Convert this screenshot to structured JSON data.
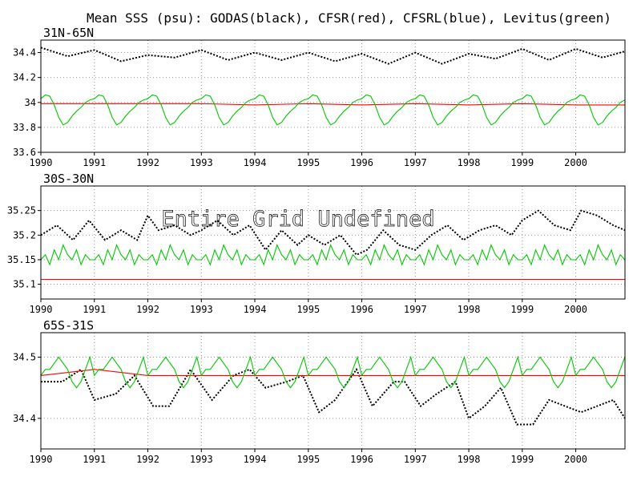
{
  "figure_title": "Mean SSS (psu): GODAS(black), CFSR(red), CFSRL(blue), Levitus(green)",
  "colors": {
    "godas": "#000000",
    "cfsr": "#ff0000",
    "cfsrl": "#0000ff",
    "levitus": "#00c800",
    "grid": "#9a9a9a",
    "frame": "#000000"
  },
  "chart_data": [
    {
      "type": "line",
      "title": "31N-65N",
      "xlabel": "",
      "ylabel": "",
      "x_ticks": [
        "1990",
        "1991",
        "1992",
        "1993",
        "1994",
        "1995",
        "1996",
        "1997",
        "1998",
        "1999",
        "2000"
      ],
      "xlim": [
        1990,
        2000.92
      ],
      "y_ticks": [
        "33.6",
        "33.8",
        "34",
        "34.2",
        "34.4"
      ],
      "ylim": [
        33.6,
        34.5
      ],
      "grid": true,
      "annotation": "",
      "series": [
        {
          "name": "GODAS",
          "color": "black",
          "style": "dotted",
          "x": [
            1990.0,
            1990.5,
            1991.0,
            1991.5,
            1992.0,
            1992.5,
            1993.0,
            1993.5,
            1994.0,
            1994.5,
            1995.0,
            1995.5,
            1996.0,
            1996.5,
            1997.0,
            1997.5,
            1998.0,
            1998.5,
            1999.0,
            1999.5,
            2000.0,
            2000.5,
            2000.92
          ],
          "values": [
            34.44,
            34.37,
            34.42,
            34.33,
            34.38,
            34.36,
            34.42,
            34.34,
            34.4,
            34.34,
            34.4,
            34.33,
            34.39,
            34.31,
            34.4,
            34.31,
            34.39,
            34.35,
            34.43,
            34.34,
            34.43,
            34.36,
            34.41
          ]
        },
        {
          "name": "CFSR",
          "color": "red",
          "style": "solid",
          "x": [
            1990.0,
            1991.0,
            1992.0,
            1993.0,
            1994.0,
            1995.0,
            1996.0,
            1997.0,
            1998.0,
            1999.0,
            2000.0,
            2000.92
          ],
          "values": [
            33.99,
            33.99,
            33.99,
            33.99,
            33.98,
            33.99,
            33.98,
            33.99,
            33.98,
            33.99,
            33.98,
            33.98
          ]
        },
        {
          "name": "Levitus",
          "color": "green",
          "style": "solid",
          "climatology": true,
          "x": [
            0,
            1,
            2,
            3,
            4,
            5,
            6,
            7,
            8,
            9,
            10,
            11
          ],
          "values": [
            34.03,
            34.06,
            34.05,
            33.98,
            33.88,
            33.82,
            33.84,
            33.89,
            33.93,
            33.96,
            34.0,
            34.02
          ]
        }
      ]
    },
    {
      "type": "line",
      "title": "30S-30N",
      "xlabel": "",
      "ylabel": "",
      "x_ticks": [
        "1990",
        "1991",
        "1992",
        "1993",
        "1994",
        "1995",
        "1996",
        "1997",
        "1998",
        "1999",
        "2000"
      ],
      "xlim": [
        1990,
        2000.92
      ],
      "y_ticks": [
        "35.1",
        "35.15",
        "35.2",
        "35.25"
      ],
      "ylim": [
        35.07,
        35.3
      ],
      "grid": true,
      "annotation": "Entire Grid Undefined",
      "series": [
        {
          "name": "GODAS",
          "color": "black",
          "style": "dotted",
          "x": [
            1990.0,
            1990.3,
            1990.6,
            1990.9,
            1991.2,
            1991.5,
            1991.8,
            1992.0,
            1992.2,
            1992.5,
            1992.8,
            1993.0,
            1993.3,
            1993.6,
            1993.9,
            1994.2,
            1994.5,
            1994.8,
            1995.0,
            1995.3,
            1995.6,
            1995.9,
            1996.1,
            1996.4,
            1996.7,
            1997.0,
            1997.3,
            1997.6,
            1997.9,
            1998.2,
            1998.5,
            1998.8,
            1999.0,
            1999.3,
            1999.6,
            1999.9,
            2000.1,
            2000.4,
            2000.7,
            2000.92
          ],
          "values": [
            35.2,
            35.22,
            35.19,
            35.23,
            35.19,
            35.21,
            35.19,
            35.24,
            35.21,
            35.22,
            35.2,
            35.21,
            35.23,
            35.2,
            35.22,
            35.17,
            35.21,
            35.18,
            35.2,
            35.18,
            35.2,
            35.16,
            35.17,
            35.21,
            35.18,
            35.17,
            35.2,
            35.22,
            35.19,
            35.21,
            35.22,
            35.2,
            35.23,
            35.25,
            35.22,
            35.21,
            35.25,
            35.24,
            35.22,
            35.21
          ]
        },
        {
          "name": "CFSR",
          "color": "red",
          "style": "solid",
          "x": [
            1990.0,
            1992.0,
            1994.0,
            1996.0,
            1998.0,
            2000.0,
            2000.92
          ],
          "values": [
            35.11,
            35.11,
            35.11,
            35.11,
            35.11,
            35.11,
            35.11
          ]
        },
        {
          "name": "Levitus",
          "color": "green",
          "style": "solid",
          "climatology": true,
          "x": [
            0,
            1,
            2,
            3,
            4,
            5,
            6,
            7,
            8,
            9,
            10,
            11
          ],
          "values": [
            35.15,
            35.16,
            35.14,
            35.17,
            35.15,
            35.18,
            35.16,
            35.15,
            35.17,
            35.14,
            35.16,
            35.15
          ]
        }
      ]
    },
    {
      "type": "line",
      "title": "65S-31S",
      "xlabel": "",
      "ylabel": "",
      "x_ticks": [
        "1990",
        "1991",
        "1992",
        "1993",
        "1994",
        "1995",
        "1996",
        "1997",
        "1998",
        "1999",
        "2000"
      ],
      "xlim": [
        1990,
        2000.92
      ],
      "y_ticks": [
        "34.4",
        "34.5"
      ],
      "ylim": [
        34.35,
        34.54
      ],
      "grid": true,
      "annotation": "",
      "series": [
        {
          "name": "GODAS",
          "color": "black",
          "style": "dotted",
          "x": [
            1990.0,
            1990.4,
            1990.75,
            1991.0,
            1991.4,
            1991.75,
            1992.1,
            1992.4,
            1992.8,
            1993.2,
            1993.6,
            1993.9,
            1994.2,
            1994.6,
            1994.9,
            1995.2,
            1995.5,
            1995.9,
            1996.2,
            1996.6,
            1996.8,
            1997.1,
            1997.4,
            1997.75,
            1998.0,
            1998.3,
            1998.6,
            1998.9,
            1999.2,
            1999.5,
            1999.8,
            2000.1,
            2000.4,
            2000.7,
            2000.92
          ],
          "values": [
            34.46,
            34.46,
            34.48,
            34.43,
            34.44,
            34.47,
            34.42,
            34.42,
            34.48,
            34.43,
            34.47,
            34.48,
            34.45,
            34.46,
            34.47,
            34.41,
            34.43,
            34.48,
            34.42,
            34.46,
            34.46,
            34.42,
            34.44,
            34.46,
            34.4,
            34.42,
            34.45,
            34.39,
            34.39,
            34.43,
            34.42,
            34.41,
            34.42,
            34.43,
            34.4
          ]
        },
        {
          "name": "CFSR",
          "color": "red",
          "style": "solid",
          "x": [
            1990.0,
            1991.0,
            1992.0,
            1993.0,
            1994.0,
            1995.0,
            1996.0,
            1997.0,
            1998.0,
            1999.0,
            2000.0,
            2000.92
          ],
          "values": [
            34.47,
            34.48,
            34.47,
            34.47,
            34.47,
            34.47,
            34.47,
            34.47,
            34.47,
            34.47,
            34.47,
            34.47
          ]
        },
        {
          "name": "Levitus",
          "color": "green",
          "style": "solid",
          "climatology": true,
          "x": [
            0,
            1,
            2,
            3,
            4,
            5,
            6,
            7,
            8,
            9,
            10,
            11
          ],
          "values": [
            34.47,
            34.48,
            34.48,
            34.49,
            34.5,
            34.49,
            34.48,
            34.46,
            34.45,
            34.46,
            34.48,
            34.5
          ]
        }
      ]
    }
  ]
}
